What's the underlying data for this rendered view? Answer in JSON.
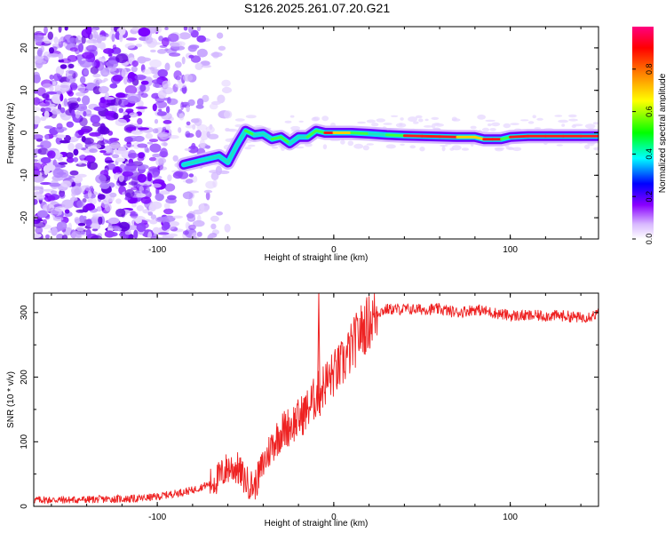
{
  "title": "S126.2025.261.07.20.G21",
  "chart_data": [
    {
      "type": "heatmap",
      "name": "spectrogram",
      "xlabel": "Height of straight line (km)",
      "ylabel": "Frequency (Hz)",
      "xlim": [
        -170,
        150
      ],
      "ylim": [
        -25,
        25
      ],
      "xticks": [
        -100,
        0,
        100
      ],
      "yticks": [
        -20,
        -10,
        0,
        10,
        20
      ],
      "colorbar": {
        "label": "Normalized spectral amplitude",
        "range": [
          0.0,
          1.0
        ],
        "ticks": [
          0.0,
          0.2,
          0.4,
          0.6,
          0.8
        ],
        "colors": [
          "#ffffff",
          "#d8b8ff",
          "#8a00ff",
          "#0000ff",
          "#00ffff",
          "#00ff00",
          "#ffff00",
          "#ff8000",
          "#ff0000",
          "#ff0080"
        ]
      },
      "ridge": {
        "x": [
          -85,
          -80,
          -75,
          -70,
          -65,
          -60,
          -55,
          -50,
          -45,
          -40,
          -35,
          -30,
          -25,
          -20,
          -15,
          -10,
          -5,
          0,
          10,
          20,
          30,
          40,
          50,
          60,
          70,
          80,
          85,
          90,
          95,
          100,
          110,
          120,
          130,
          140,
          150
        ],
        "y": [
          -7.5,
          -7.0,
          -6.5,
          -6.0,
          -5.5,
          -7.0,
          -3.0,
          0.5,
          -0.5,
          -0.2,
          -1.5,
          -1.0,
          -2.5,
          -1.0,
          -1.0,
          0.5,
          0.0,
          0.0,
          0.0,
          -0.2,
          -0.5,
          -0.7,
          -0.8,
          -0.9,
          -1.0,
          -1.0,
          -1.5,
          -1.5,
          -1.5,
          -1.0,
          -0.8,
          -0.8,
          -0.8,
          -0.8,
          -0.8
        ],
        "amplitude": [
          0.35,
          0.4,
          0.5,
          0.45,
          0.5,
          0.45,
          0.55,
          0.6,
          0.55,
          0.55,
          0.6,
          0.6,
          0.55,
          0.55,
          0.6,
          0.7,
          0.9,
          0.75,
          0.6,
          0.55,
          0.65,
          0.9,
          0.9,
          0.9,
          0.8,
          0.8,
          0.95,
          0.9,
          0.7,
          0.95,
          0.95,
          0.95,
          0.95,
          0.95,
          0.95
        ]
      }
    },
    {
      "type": "line",
      "name": "snr",
      "xlabel": "Height of straight line (km)",
      "ylabel": "SNR (10 * v/v)",
      "xlim": [
        -170,
        150
      ],
      "ylim": [
        0,
        330
      ],
      "xticks": [
        -100,
        0,
        100
      ],
      "yticks": [
        0,
        100,
        200,
        300
      ],
      "color": "#ee2222",
      "x": [
        -170,
        -150,
        -130,
        -110,
        -100,
        -90,
        -80,
        -70,
        -65,
        -60,
        -55,
        -50,
        -45,
        -40,
        -35,
        -30,
        -25,
        -20,
        -15,
        -10,
        -5,
        0,
        5,
        10,
        15,
        20,
        25,
        30,
        40,
        50,
        60,
        70,
        80,
        90,
        100,
        110,
        120,
        130,
        140,
        150
      ],
      "y": [
        10,
        10,
        11,
        12,
        15,
        20,
        25,
        35,
        45,
        60,
        60,
        40,
        30,
        65,
        95,
        115,
        125,
        135,
        150,
        170,
        190,
        205,
        220,
        245,
        270,
        285,
        300,
        305,
        305,
        305,
        305,
        300,
        305,
        300,
        295,
        295,
        295,
        295,
        292,
        298
      ],
      "spike": {
        "x": -8.5,
        "y": 330
      }
    }
  ]
}
